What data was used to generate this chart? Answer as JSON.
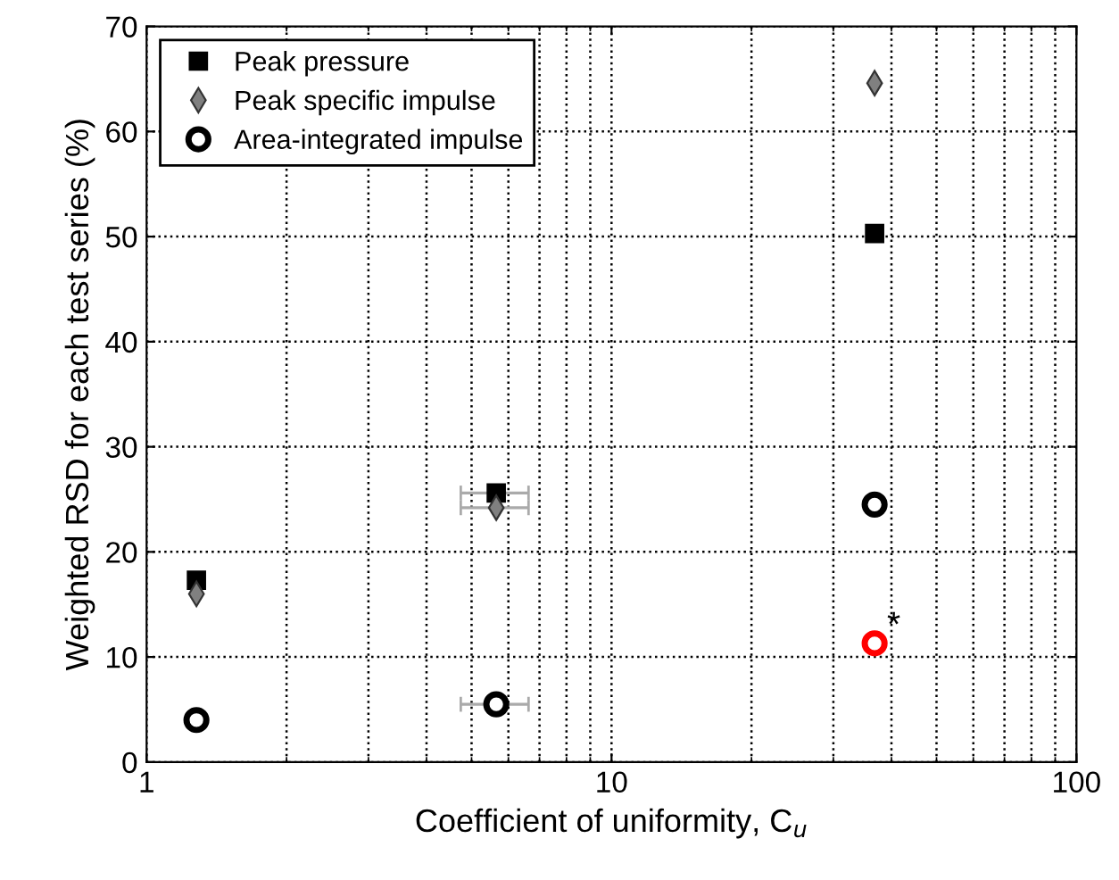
{
  "chart_data": {
    "type": "scatter",
    "xlabel": "Coefficient of uniformity, C$_{u}$",
    "ylabel": "Weighted RSD for each test series (%)",
    "log": "x",
    "xlim": [
      1,
      100
    ],
    "xticks": [
      1,
      10,
      100
    ],
    "ylim": [
      0,
      70
    ],
    "yticks": [
      0,
      10,
      20,
      30,
      40,
      50,
      60,
      70
    ],
    "grid": true,
    "legend": "top left",
    "series": [
      {
        "name": "Peak pressure",
        "color": "#000000",
        "marker": "square",
        "x": [
          1.28,
          5.65,
          36.8
        ],
        "values": [
          17.3,
          25.6,
          50.3
        ],
        "xerrors": [
          null,
          [
            4.74,
            6.63
          ],
          null
        ]
      },
      {
        "name": "Peak specific impulse",
        "color": "#808080",
        "marker": "diamond",
        "x": [
          1.28,
          5.65,
          36.8
        ],
        "values": [
          16,
          24.2,
          64.6
        ],
        "xerrors": [
          null,
          [
            4.74,
            6.63
          ],
          null
        ]
      },
      {
        "name": "Area-integrated impulse",
        "color": "#000000",
        "colors": [
          "#000000",
          "#000000",
          "#000000",
          "#ff0000"
        ],
        "marker": "circle",
        "x": [
          1.28,
          5.65,
          36.8,
          36.8
        ],
        "values": [
          4,
          5.5,
          24.5,
          11.3
        ],
        "xerrors": [
          null,
          [
            4.74,
            6.63
          ],
          null,
          null
        ]
      }
    ],
    "annotations": [
      {
        "text": "*",
        "x": 36.8,
        "y": 11.3
      }
    ]
  }
}
